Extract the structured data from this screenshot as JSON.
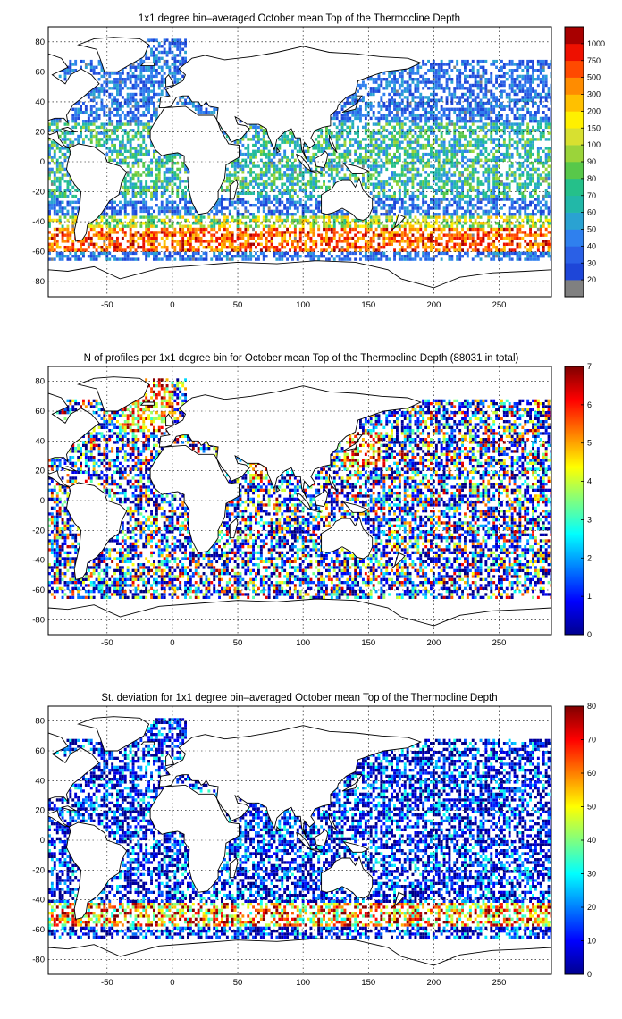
{
  "x_ticks": [
    "-50",
    "0",
    "50",
    "100",
    "150",
    "200",
    "250"
  ],
  "y_ticks": [
    "80",
    "60",
    "40",
    "20",
    "0",
    "-20",
    "-40",
    "-60",
    "-80"
  ],
  "panels": [
    {
      "title": "1x1 degree bin–averaged October mean Top of the Thermocline Depth",
      "colorbar": {
        "scale": "discrete",
        "labels": [
          "20",
          "30",
          "40",
          "50",
          "60",
          "70",
          "80",
          "90",
          "100",
          "150",
          "200",
          "300",
          "500",
          "750",
          "1000"
        ],
        "colors": [
          "#808080",
          "#1e46d8",
          "#2a60e6",
          "#2f80ee",
          "#2aa2d2",
          "#22b8a8",
          "#25c08a",
          "#58c84a",
          "#9bd43a",
          "#d8e030",
          "#fff000",
          "#ffc000",
          "#ff8c00",
          "#ff4a00",
          "#ee1000",
          "#a80000"
        ]
      }
    },
    {
      "title": "N of profiles per 1x1 degree bin for October mean Top of the Thermocline Depth  (88031 in total)",
      "colorbar": {
        "scale": "continuous",
        "min": 0,
        "max": 7,
        "labels": [
          "0",
          "1",
          "2",
          "3",
          "4",
          "5",
          "6",
          "7"
        ]
      }
    },
    {
      "title": "St. deviation for 1x1 degree bin–averaged October mean Top of the Thermocline Depth",
      "colorbar": {
        "scale": "continuous",
        "min": 0,
        "max": 80,
        "labels": [
          "0",
          "10",
          "20",
          "30",
          "40",
          "50",
          "60",
          "70",
          "80"
        ]
      }
    }
  ]
}
